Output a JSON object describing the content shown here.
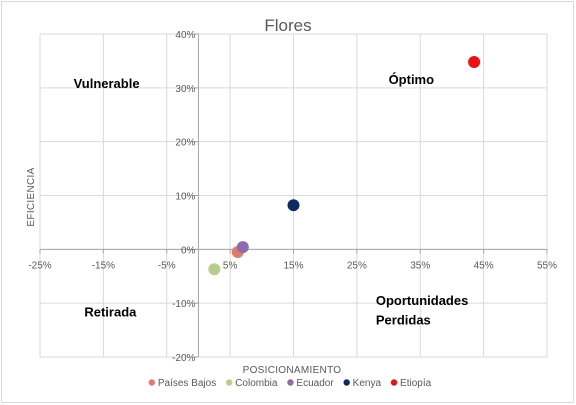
{
  "chart_data": {
    "type": "scatter",
    "title": "Flores",
    "xlabel": "POSICIONAMIENTO",
    "ylabel": "EFICIENCIA",
    "xlim": [
      -0.25,
      0.55
    ],
    "ylim": [
      -0.2,
      0.4
    ],
    "x_ticks": [
      -0.25,
      -0.15,
      -0.05,
      0.05,
      0.15,
      0.25,
      0.35,
      0.45,
      0.55
    ],
    "x_tick_labels": [
      "-25%",
      "-15%",
      "-5%",
      "5%",
      "15%",
      "25%",
      "35%",
      "45%",
      "55%"
    ],
    "y_ticks": [
      0.4,
      0.3,
      0.2,
      0.1,
      0.0,
      -0.1,
      -0.2
    ],
    "y_tick_labels": [
      "40%",
      "30%",
      "20%",
      "10%",
      "0%",
      "-10%",
      "-20%"
    ],
    "grid": true,
    "legend_position": "bottom",
    "quadrant_labels": [
      {
        "text": "Vulnerable",
        "region": "top-left"
      },
      {
        "text": "Óptimo",
        "region": "top-right"
      },
      {
        "text": "Retirada",
        "region": "bottom-left"
      },
      {
        "text": "Oportunidades",
        "text2": "Perdidas",
        "region": "bottom-right"
      }
    ],
    "series": [
      {
        "name": "Países Bajos",
        "color": "#e07b6e",
        "points": [
          [
            0.062,
            -0.005
          ]
        ]
      },
      {
        "name": "Colombia",
        "color": "#b4cf8a",
        "points": [
          [
            0.025,
            -0.037
          ]
        ]
      },
      {
        "name": "Ecuador",
        "color": "#8e6aae",
        "points": [
          [
            0.07,
            0.004
          ]
        ]
      },
      {
        "name": "Kenya",
        "color": "#0d2a63",
        "points": [
          [
            0.15,
            0.082
          ]
        ]
      },
      {
        "name": "Etiopía",
        "color": "#ee1111",
        "points": [
          [
            0.435,
            0.348
          ]
        ]
      }
    ]
  }
}
